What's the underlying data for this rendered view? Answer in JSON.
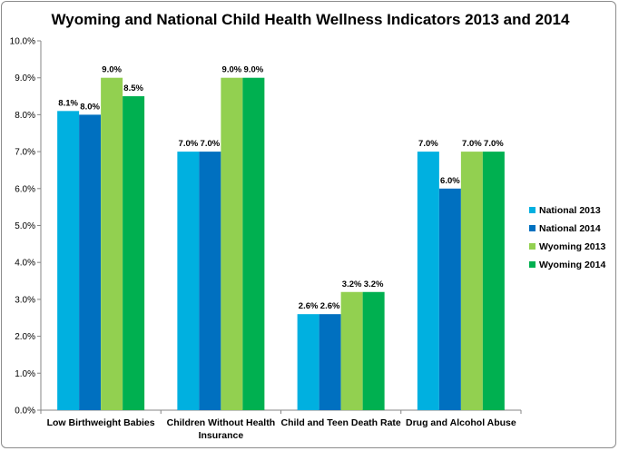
{
  "chart_data": {
    "type": "bar",
    "title": "Wyoming and National Child Health Wellness Indicators 2013 and 2014",
    "categories": [
      [
        "Low Birthweight Babies"
      ],
      [
        "Children Without Health",
        "Insurance"
      ],
      [
        "Child and Teen Death Rate"
      ],
      [
        "Drug and Alcohol Abuse"
      ]
    ],
    "series": [
      {
        "name": "National 2013",
        "color": "#00b0e0",
        "values": [
          8.1,
          7.0,
          2.6,
          7.0
        ]
      },
      {
        "name": "National 2014",
        "color": "#0070c0",
        "values": [
          8.0,
          7.0,
          2.6,
          6.0
        ]
      },
      {
        "name": "Wyoming 2013",
        "color": "#92d050",
        "values": [
          9.0,
          9.0,
          3.2,
          7.0
        ]
      },
      {
        "name": "Wyoming 2014",
        "color": "#00b050",
        "values": [
          8.5,
          9.0,
          3.2,
          7.0
        ]
      }
    ],
    "yticks": [
      "0.0%",
      "1.0%",
      "2.0%",
      "3.0%",
      "4.0%",
      "5.0%",
      "6.0%",
      "7.0%",
      "8.0%",
      "9.0%",
      "10.0%"
    ],
    "ylim": [
      0,
      10
    ],
    "value_format": "percent_1dp",
    "grid": false,
    "legend_position": "right"
  }
}
